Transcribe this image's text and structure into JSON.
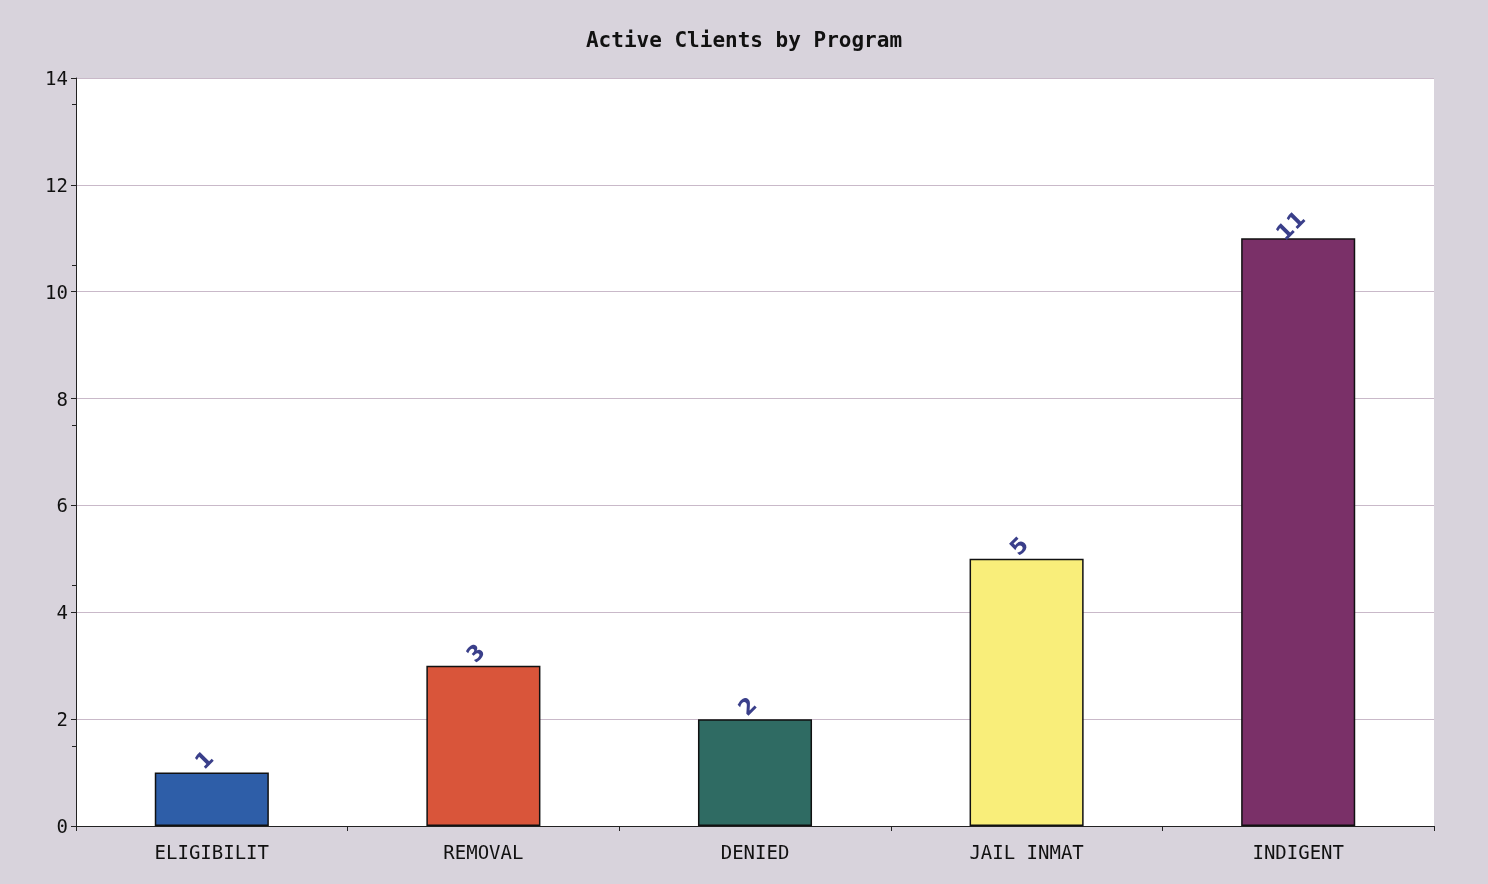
{
  "chart_data": {
    "type": "bar",
    "title": "Active Clients by Program",
    "categories": [
      "ELIGIBILIT",
      "REMOVAL",
      "DENIED",
      "JAIL INMAT",
      "INDIGENT"
    ],
    "values": [
      1,
      3,
      2,
      5,
      11
    ],
    "colors": [
      "#2e5ea8",
      "#d9553a",
      "#2f6b63",
      "#f9ee7a",
      "#7a3068"
    ],
    "ylim": [
      0,
      14
    ],
    "yticks": [
      0,
      2,
      4,
      6,
      8,
      10,
      12,
      14
    ],
    "grid": "y",
    "data_labels": true
  }
}
